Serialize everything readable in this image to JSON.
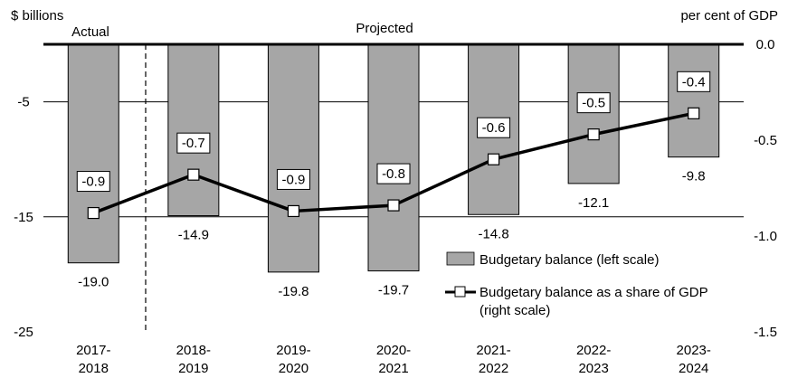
{
  "chart_data": {
    "type": "bar",
    "left_axis_label": "$ billions",
    "right_axis_label": "per cent of GDP",
    "period_labels": {
      "actual": "Actual",
      "projected": "Projected"
    },
    "categories": [
      [
        "2017-",
        "2018"
      ],
      [
        "2018-",
        "2019"
      ],
      [
        "2019-",
        "2020"
      ],
      [
        "2020-",
        "2021"
      ],
      [
        "2021-",
        "2022"
      ],
      [
        "2022-",
        "2023"
      ],
      [
        "2023-",
        "2024"
      ]
    ],
    "left_axis": {
      "min": -25,
      "max": 0,
      "ticks": [
        "-25",
        "-15",
        "-5"
      ],
      "tick_values": [
        -25,
        -15,
        -5
      ]
    },
    "right_axis": {
      "min": -1.5,
      "max": 0,
      "ticks": [
        "0.0",
        "-0.5",
        "-1.0",
        "-1.5"
      ],
      "tick_values": [
        0,
        -0.5,
        -1.0,
        -1.5
      ]
    },
    "gridlines": [
      -5,
      -15
    ],
    "series": [
      {
        "name": "Budgetary balance (left scale)",
        "kind": "bar",
        "axis": "left",
        "color": "#a6a6a6",
        "values": [
          -19.0,
          -14.9,
          -19.8,
          -19.7,
          -14.8,
          -12.1,
          -9.8
        ],
        "labels": [
          "-19.0",
          "-14.9",
          "-19.8",
          "-19.7",
          "-14.8",
          "-12.1",
          "-9.8"
        ]
      },
      {
        "name": "Budgetary balance as a share of GDP",
        "name_line2": "(right scale)",
        "kind": "line",
        "axis": "right",
        "color": "#000000",
        "values": [
          -0.88,
          -0.68,
          -0.87,
          -0.84,
          -0.6,
          -0.47,
          -0.36
        ],
        "labels": [
          "-0.9",
          "-0.7",
          "-0.9",
          "-0.8",
          "-0.6",
          "-0.5",
          "-0.4"
        ]
      }
    ]
  }
}
